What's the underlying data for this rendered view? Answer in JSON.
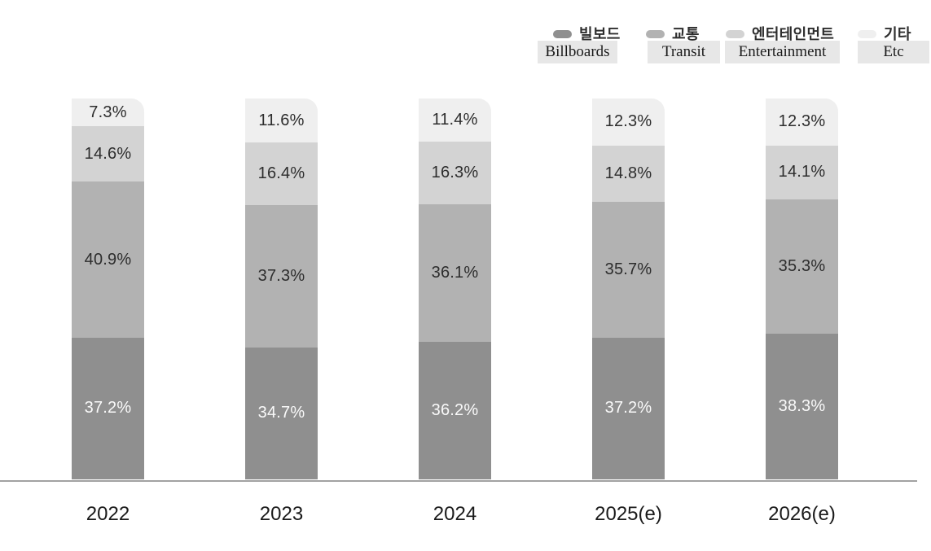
{
  "legend": {
    "items": [
      {
        "label_ko": "빌보드",
        "label_en": "Billboards",
        "color": "#8f8f8f"
      },
      {
        "label_ko": "교통",
        "label_en": "Transit",
        "color": "#b2b2b2"
      },
      {
        "label_ko": "엔터테인먼트",
        "label_en": "Entertainment",
        "color": "#d3d3d3"
      },
      {
        "label_ko": "기타",
        "label_en": "Etc",
        "color": "#efefef"
      }
    ],
    "translation_box_bg": "#e7e7e7"
  },
  "chart_data": {
    "type": "bar",
    "stacked": true,
    "unit": "%",
    "title": "",
    "xlabel": "",
    "ylabel": "",
    "ylim": [
      0,
      100
    ],
    "grid": false,
    "legend_position": "top-right",
    "categories": [
      "2022",
      "2023",
      "2024",
      "2025(e)",
      "2026(e)"
    ],
    "series": [
      {
        "name": "빌보드 (Billboards)",
        "color": "#8f8f8f",
        "label_color": "#fafafa",
        "values": [
          37.2,
          34.7,
          36.2,
          37.2,
          38.3
        ]
      },
      {
        "name": "교통 (Transit)",
        "color": "#b2b2b2",
        "label_color": "#2d2d2d",
        "values": [
          40.9,
          37.3,
          36.1,
          35.7,
          35.3
        ]
      },
      {
        "name": "엔터테인먼트 (Entertainment)",
        "color": "#d3d3d3",
        "label_color": "#2d2d2d",
        "values": [
          14.6,
          16.4,
          16.3,
          14.8,
          14.1
        ]
      },
      {
        "name": "기타 (Etc)",
        "color": "#efefef",
        "label_color": "#2d2d2d",
        "values": [
          7.3,
          11.6,
          11.4,
          12.3,
          12.3
        ]
      }
    ],
    "axis_line_color": "#a2a2a2"
  }
}
